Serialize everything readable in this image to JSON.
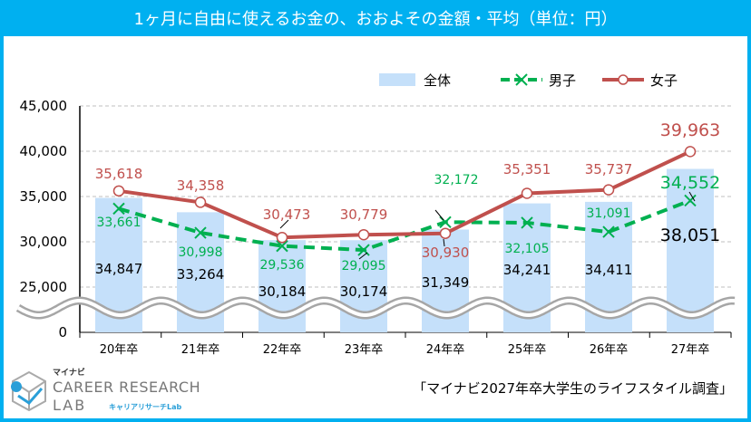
{
  "title": "1ヶ月に自由に使えるお金の、おおよその金額・平均（単位：円）",
  "source": "「マイナビ2027年卒大学生のライフスタイル調査」",
  "logo": {
    "top": "マイナビ",
    "name": "CAREER RESEARCH",
    "lab": "LAB",
    "sub": "キャリアリサーチLab"
  },
  "colors": {
    "frame": "#00b0f0",
    "bar": "#c5e0fa",
    "male": "#00b050",
    "female": "#c0504d",
    "wave": "#a6a6a6"
  },
  "chart_data": {
    "type": "bar+line",
    "categories": [
      "20年卒",
      "21年卒",
      "22年卒",
      "23年卒",
      "24年卒",
      "25年卒",
      "26年卒",
      "27年卒"
    ],
    "yticks": [
      "0",
      "25,000",
      "30,000",
      "35,000",
      "40,000",
      "45,000"
    ],
    "ylim": [
      0,
      45000
    ],
    "axis_break": "0–20,000",
    "grid": true,
    "legend_placement": "top-right",
    "series": [
      {
        "name": "全体",
        "kind": "bar",
        "values": [
          34847,
          33264,
          30184,
          30174,
          31349,
          34241,
          34411,
          38051
        ],
        "labels": [
          "34,847",
          "33,264",
          "30,184",
          "30,174",
          "31,349",
          "34,241",
          "34,411",
          "38,051"
        ]
      },
      {
        "name": "男子",
        "kind": "line-dashed",
        "marker": "x",
        "values": [
          33661,
          30998,
          29536,
          29095,
          32172,
          32105,
          31091,
          34552
        ],
        "labels": [
          "33,661",
          "30,998",
          "29,536",
          "29,095",
          "32,172",
          "32,105",
          "31,091",
          "34,552"
        ]
      },
      {
        "name": "女子",
        "kind": "line",
        "marker": "circle",
        "values": [
          35618,
          34358,
          30473,
          30779,
          30930,
          35351,
          35737,
          39963
        ],
        "labels": [
          "35,618",
          "34,358",
          "30,473",
          "30,779",
          "30,930",
          "35,351",
          "35,737",
          "39,963"
        ]
      }
    ]
  }
}
